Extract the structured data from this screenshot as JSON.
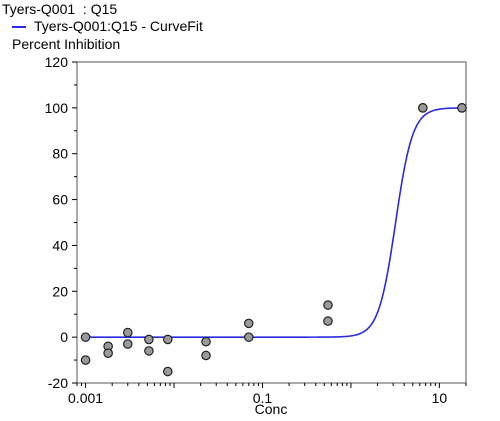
{
  "chart_data": {
    "type": "scatter",
    "title": "Tyers-Q001  : Q15",
    "ylabel": "Percent Inhibition",
    "xlabel": "Conc",
    "x_scale": "log",
    "xlim": [
      0.0008,
      20
    ],
    "ylim": [
      -20,
      120
    ],
    "y_ticks": [
      -20,
      0,
      20,
      40,
      60,
      80,
      100,
      120
    ],
    "x_ticks": [
      {
        "value": 0.001,
        "label": "0.001"
      },
      {
        "value": 0.1,
        "label": "0.1"
      },
      {
        "value": 10,
        "label": "10"
      }
    ],
    "grid": false,
    "legend_position": "top-left",
    "series": [
      {
        "name": "",
        "kind": "points",
        "color": "#9a9a9a",
        "points": [
          {
            "x": 0.001,
            "y": 0
          },
          {
            "x": 0.001,
            "y": -10
          },
          {
            "x": 0.0018,
            "y": -4
          },
          {
            "x": 0.0018,
            "y": -7
          },
          {
            "x": 0.003,
            "y": 2
          },
          {
            "x": 0.003,
            "y": -3
          },
          {
            "x": 0.0052,
            "y": -1
          },
          {
            "x": 0.0052,
            "y": -6
          },
          {
            "x": 0.0085,
            "y": -1
          },
          {
            "x": 0.0085,
            "y": -15
          },
          {
            "x": 0.023,
            "y": -2
          },
          {
            "x": 0.023,
            "y": -8
          },
          {
            "x": 0.07,
            "y": 6
          },
          {
            "x": 0.07,
            "y": 0
          },
          {
            "x": 0.55,
            "y": 14
          },
          {
            "x": 0.55,
            "y": 7
          },
          {
            "x": 6.5,
            "y": 100
          },
          {
            "x": 6.5,
            "y": 100
          },
          {
            "x": 18,
            "y": 100
          },
          {
            "x": 18,
            "y": 100
          }
        ]
      },
      {
        "name": "Tyers-Q001:Q15 - CurveFit",
        "kind": "curve",
        "color": "#2a2ae0",
        "bottom": 0,
        "top": 100,
        "ec50": 3.2,
        "hill": 4.5
      }
    ]
  }
}
